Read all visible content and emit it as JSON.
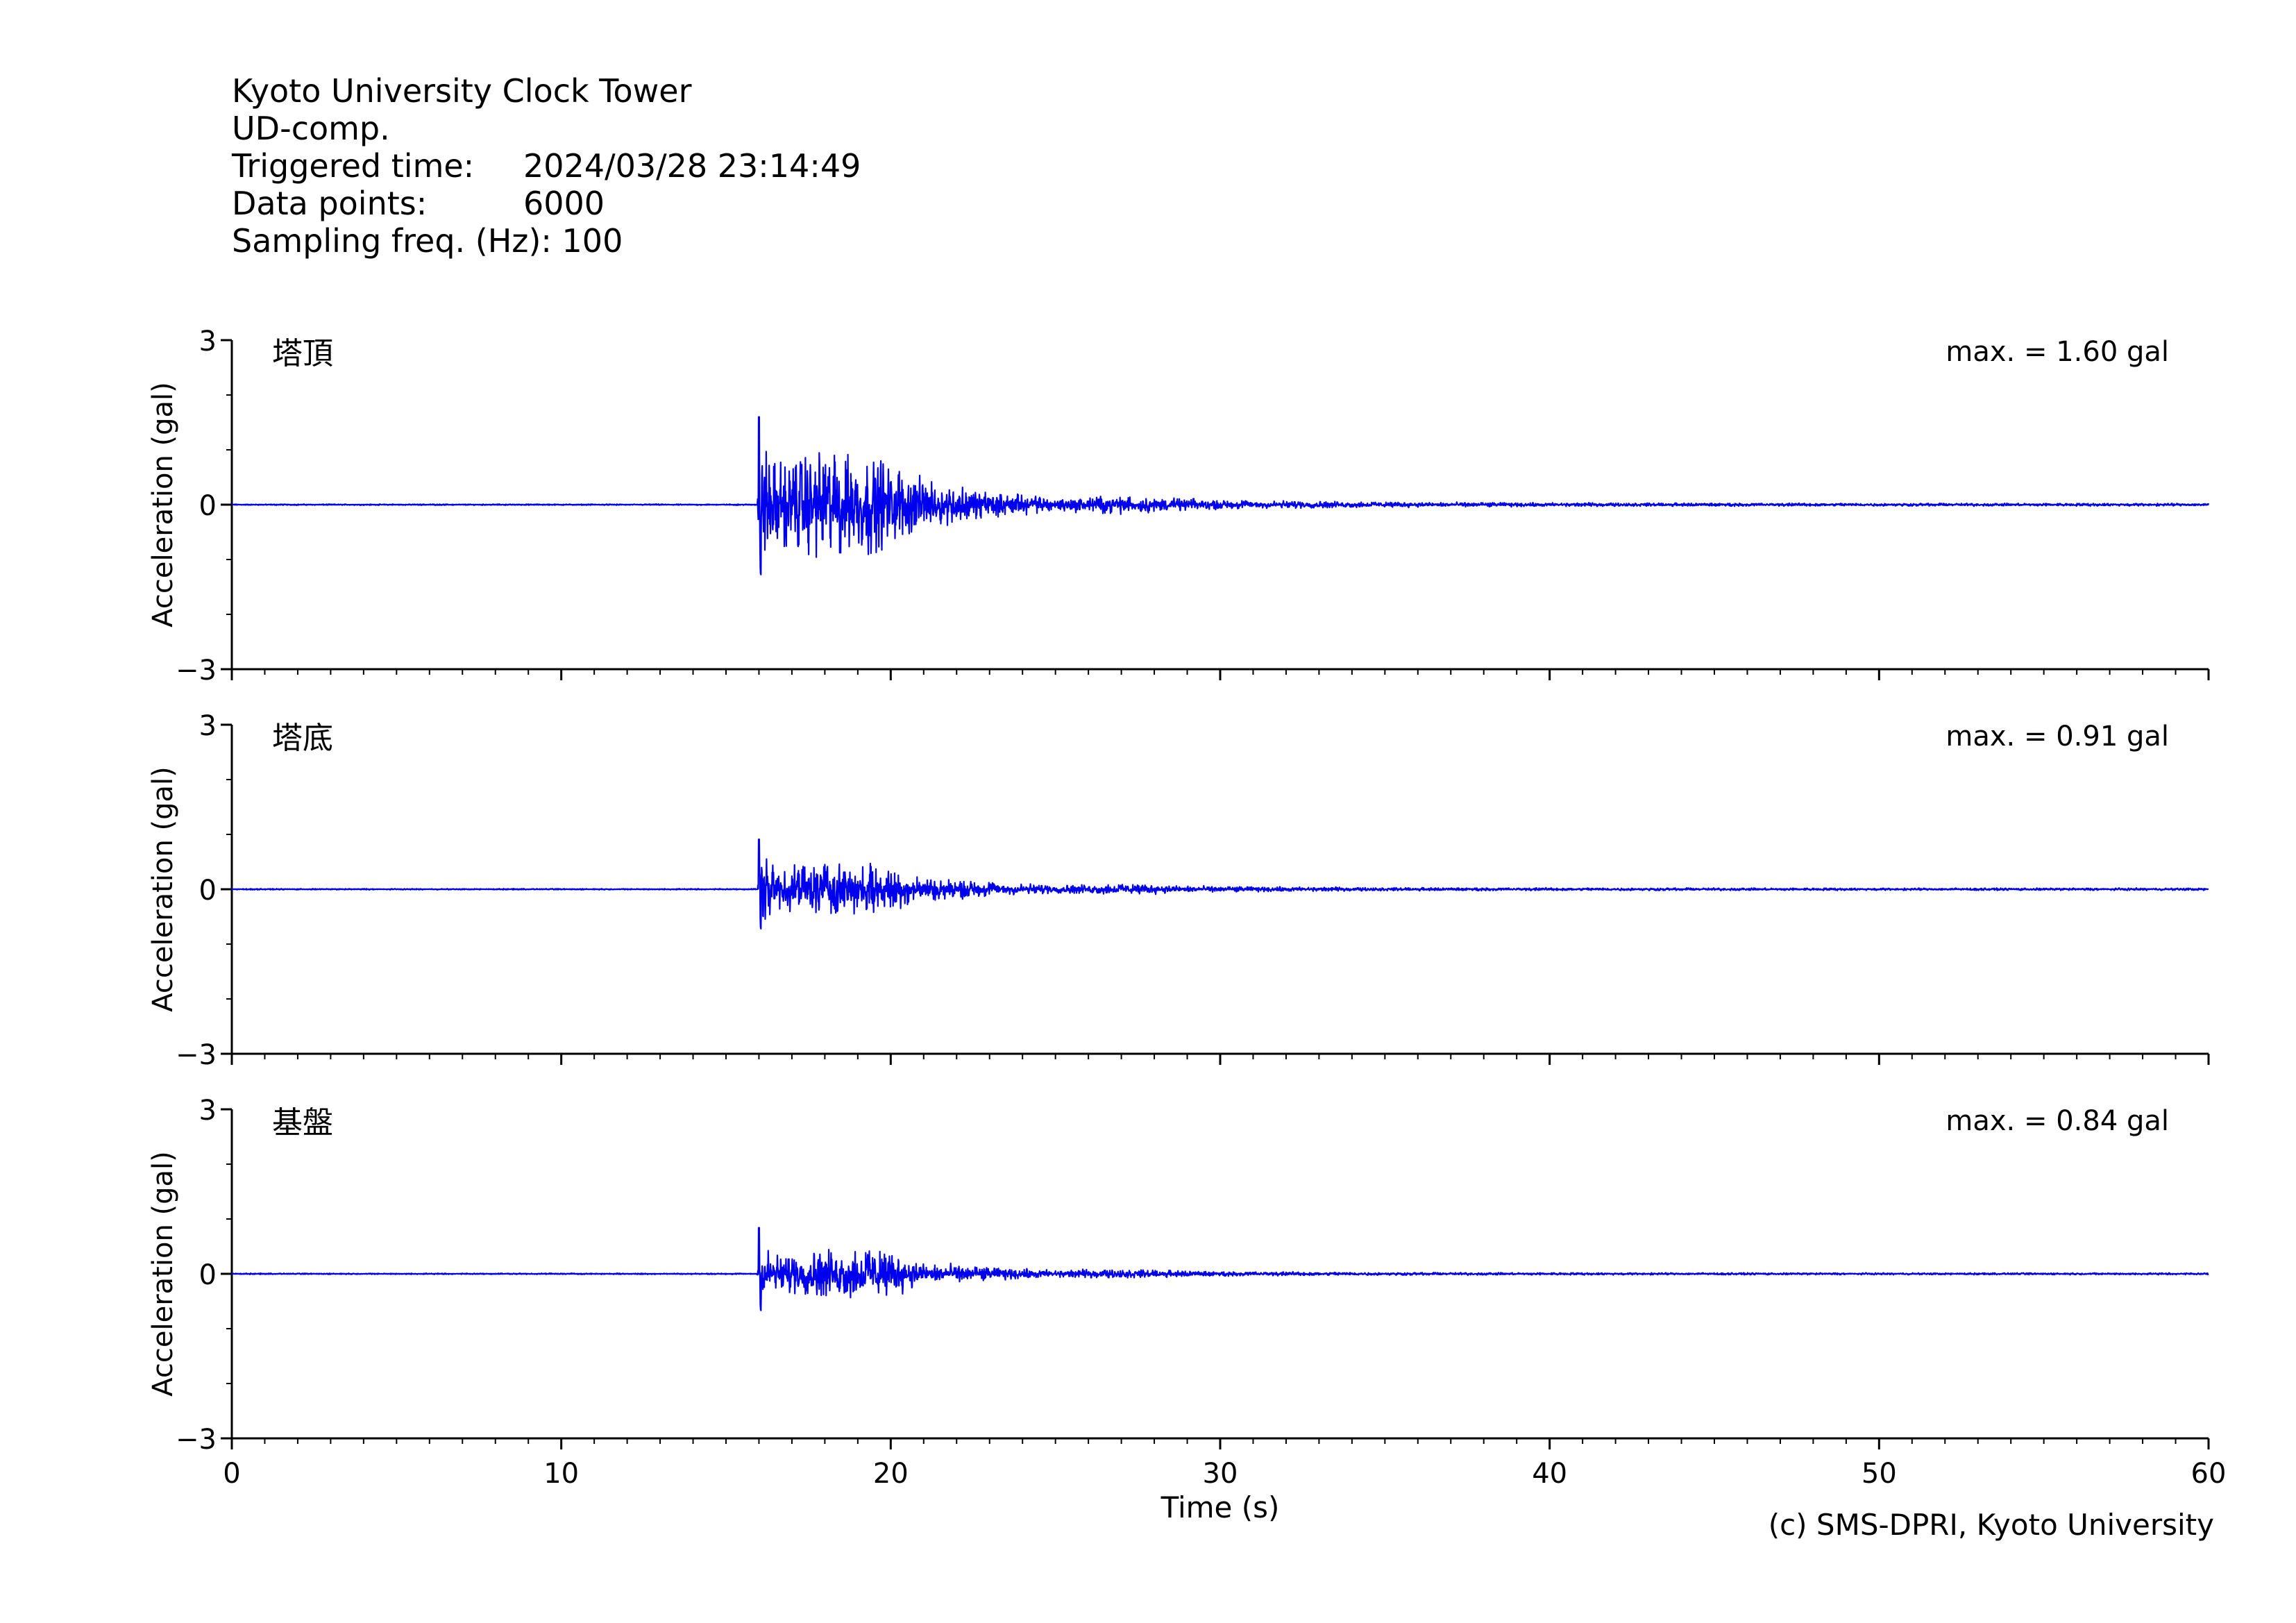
{
  "header": {
    "station": "Kyoto University Clock Tower",
    "component": "UD-comp.",
    "triggered_label": "Triggered time:",
    "triggered_value": "2024/03/28 23:14:49",
    "points_label": "Data points:",
    "points_value": "6000",
    "freq_label": "Sampling freq. (Hz):",
    "freq_value": "100"
  },
  "credit": "(c) SMS-DPRI, Kyoto University",
  "colors": {
    "trace": "#0000ee",
    "axis": "#000000"
  },
  "chart_data": [
    {
      "type": "line",
      "name": "塔頂",
      "max_label": "max. = 1.60 gal",
      "peak": 1.6,
      "ylabel": "Acceleration (gal)",
      "xlabel": "Time (s)",
      "xlim": [
        0,
        60
      ],
      "ylim": [
        -3,
        3
      ],
      "yticks": [
        "3",
        "0",
        "−3"
      ],
      "xticks": [
        "0",
        "10",
        "20",
        "30",
        "40",
        "50",
        "60"
      ],
      "onset_s": 16.0,
      "envelope": {
        "x": [
          0,
          15.95,
          16.0,
          16.5,
          18.0,
          19.5,
          21.0,
          23.0,
          25.0,
          27.0,
          30.0,
          35.0,
          40.0,
          50.0,
          60.0
        ],
        "y": [
          0.01,
          0.01,
          1.6,
          1.0,
          1.25,
          1.1,
          0.55,
          0.3,
          0.16,
          0.2,
          0.1,
          0.06,
          0.04,
          0.03,
          0.03
        ]
      }
    },
    {
      "type": "line",
      "name": "塔底",
      "max_label": "max. = 0.91 gal",
      "peak": 0.91,
      "ylabel": "Acceleration (gal)",
      "xlabel": "Time (s)",
      "xlim": [
        0,
        60
      ],
      "ylim": [
        -3,
        3
      ],
      "yticks": [
        "3",
        "0",
        "−3"
      ],
      "xticks": [
        "0",
        "10",
        "20",
        "30",
        "40",
        "50",
        "60"
      ],
      "onset_s": 16.0,
      "envelope": {
        "x": [
          0,
          15.95,
          16.0,
          16.5,
          18.0,
          19.5,
          21.0,
          23.0,
          25.0,
          27.0,
          30.0,
          35.0,
          40.0,
          50.0,
          60.0
        ],
        "y": [
          0.01,
          0.01,
          0.91,
          0.45,
          0.6,
          0.55,
          0.28,
          0.16,
          0.09,
          0.12,
          0.06,
          0.035,
          0.03,
          0.025,
          0.025
        ]
      }
    },
    {
      "type": "line",
      "name": "基盤",
      "max_label": "max. = 0.84 gal",
      "peak": 0.84,
      "ylabel": "Acceleration (gal)",
      "xlabel": "Time (s)",
      "xlim": [
        0,
        60
      ],
      "ylim": [
        -3,
        3
      ],
      "yticks": [
        "3",
        "0",
        "−3"
      ],
      "xticks": [
        "0",
        "10",
        "20",
        "30",
        "40",
        "50",
        "60"
      ],
      "onset_s": 16.0,
      "envelope": {
        "x": [
          0,
          15.95,
          16.0,
          16.5,
          18.0,
          19.5,
          21.0,
          23.0,
          25.0,
          27.0,
          30.0,
          35.0,
          40.0,
          50.0,
          60.0
        ],
        "y": [
          0.01,
          0.01,
          0.84,
          0.4,
          0.55,
          0.6,
          0.25,
          0.14,
          0.08,
          0.1,
          0.05,
          0.03,
          0.025,
          0.02,
          0.02
        ]
      }
    }
  ]
}
